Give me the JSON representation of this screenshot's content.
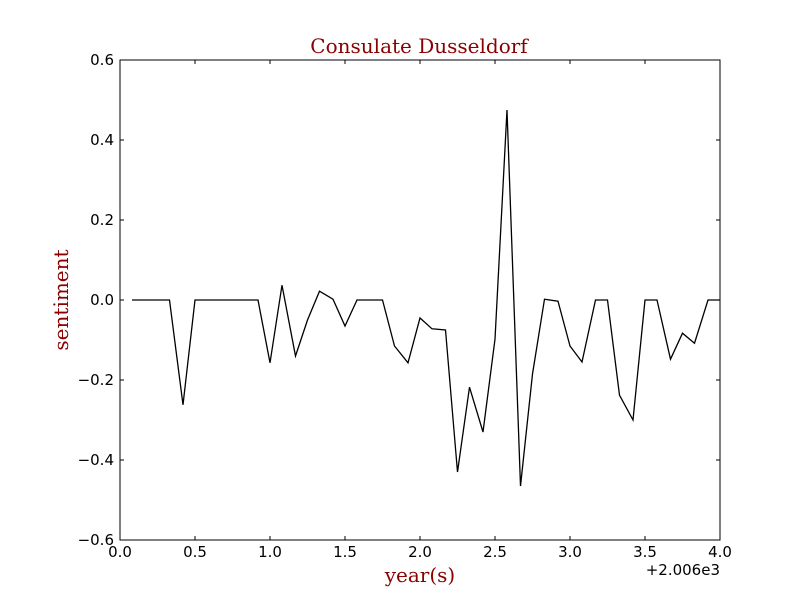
{
  "chart_data": {
    "type": "line",
    "title": "Consulate Dusseldorf",
    "xlabel": "year(s)",
    "ylabel": "sentiment",
    "x_offset_label": "+2.006e3",
    "xlim": [
      0.0,
      4.0
    ],
    "ylim": [
      -0.6,
      0.6
    ],
    "x_ticks": [
      0.0,
      0.5,
      1.0,
      1.5,
      2.0,
      2.5,
      3.0,
      3.5,
      4.0
    ],
    "x_tick_labels": [
      "0.0",
      "0.5",
      "1.0",
      "1.5",
      "2.0",
      "2.5",
      "3.0",
      "3.5",
      "4.0"
    ],
    "y_ticks": [
      -0.6,
      -0.4,
      -0.2,
      0.0,
      0.2,
      0.4,
      0.6
    ],
    "y_tick_labels": [
      "−0.6",
      "−0.4",
      "−0.2",
      "0.0",
      "0.2",
      "0.4",
      "0.6"
    ],
    "grid": false,
    "colors": {
      "line": "#000000",
      "title": "#8b0000",
      "labels": "#8b0000"
    },
    "series": [
      {
        "x": [
          0.08,
          0.17,
          0.25,
          0.33,
          0.42,
          0.5,
          0.58,
          0.67,
          0.75,
          0.83,
          0.92,
          1.0,
          1.08,
          1.17,
          1.25,
          1.33,
          1.42,
          1.5,
          1.58,
          1.67,
          1.75,
          1.83,
          1.92,
          2.0,
          2.08,
          2.17,
          2.25,
          2.33,
          2.42,
          2.5,
          2.58,
          2.67,
          2.75,
          2.83,
          2.92,
          3.0,
          3.08,
          3.17,
          3.25,
          3.33,
          3.42,
          3.5,
          3.58,
          3.67,
          3.75,
          3.83,
          3.92,
          4.0
        ],
        "y": [
          0.0,
          0.0,
          0.0,
          0.0,
          -0.262,
          0.0,
          0.0,
          0.0,
          0.0,
          0.0,
          0.0,
          -0.157,
          0.037,
          -0.14,
          -0.05,
          0.022,
          0.002,
          -0.065,
          0.0,
          0.0,
          0.0,
          -0.115,
          -0.157,
          -0.045,
          -0.072,
          -0.075,
          -0.43,
          -0.218,
          -0.33,
          -0.098,
          0.475,
          -0.465,
          -0.185,
          0.002,
          -0.003,
          -0.115,
          -0.155,
          0.0,
          0.0,
          -0.238,
          -0.3,
          0.0,
          0.0,
          -0.148,
          -0.083,
          -0.108,
          0.0,
          0.0
        ]
      }
    ]
  }
}
